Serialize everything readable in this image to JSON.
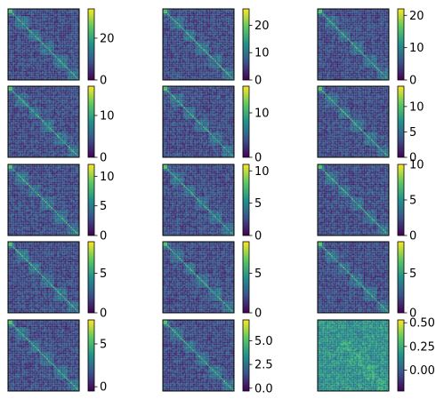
{
  "chart_data": {
    "type": "heatmap",
    "layout": {
      "rows": 5,
      "cols": 3
    },
    "colormap": "viridis",
    "colormap_stops": [
      "#440154",
      "#3b528b",
      "#21918c",
      "#5ec962",
      "#fde725"
    ],
    "axes_ticks_visible": false,
    "matrix_size": 48,
    "panels": [
      {
        "vmin": 0,
        "vmax": 34,
        "cbar_ticks": [
          0,
          20
        ],
        "cbar_tick_labels": [
          "0",
          "20"
        ]
      },
      {
        "vmin": 0,
        "vmax": 26,
        "cbar_ticks": [
          0,
          10,
          20
        ],
        "cbar_tick_labels": [
          "0",
          "10",
          "20"
        ]
      },
      {
        "vmin": 0,
        "vmax": 22,
        "cbar_ticks": [
          0,
          10,
          20
        ],
        "cbar_tick_labels": [
          "0",
          "10",
          "20"
        ]
      },
      {
        "vmin": 0,
        "vmax": 17,
        "cbar_ticks": [
          0,
          10
        ],
        "cbar_tick_labels": [
          "0",
          "10"
        ]
      },
      {
        "vmin": 0,
        "vmax": 16,
        "cbar_ticks": [
          0,
          10
        ],
        "cbar_tick_labels": [
          "0",
          "10"
        ]
      },
      {
        "vmin": 0,
        "vmax": 14,
        "cbar_ticks": [
          0,
          5,
          10
        ],
        "cbar_tick_labels": [
          "0",
          "5",
          "10"
        ]
      },
      {
        "vmin": 0,
        "vmax": 12,
        "cbar_ticks": [
          0,
          5,
          10
        ],
        "cbar_tick_labels": [
          "0",
          "5",
          "10"
        ]
      },
      {
        "vmin": 0,
        "vmax": 11,
        "cbar_ticks": [
          0,
          5,
          10
        ],
        "cbar_tick_labels": [
          "0",
          "5",
          "10"
        ]
      },
      {
        "vmin": 0,
        "vmax": 10,
        "cbar_ticks": [
          0,
          5,
          10
        ],
        "cbar_tick_labels": [
          "0",
          "5",
          "10"
        ]
      },
      {
        "vmin": 0,
        "vmax": 9,
        "cbar_ticks": [
          0,
          5
        ],
        "cbar_tick_labels": [
          "0",
          "5"
        ]
      },
      {
        "vmin": 0,
        "vmax": 9,
        "cbar_ticks": [
          0,
          5
        ],
        "cbar_tick_labels": [
          "0",
          "5"
        ]
      },
      {
        "vmin": 0,
        "vmax": 9,
        "cbar_ticks": [
          0,
          5
        ],
        "cbar_tick_labels": [
          "0",
          "5"
        ]
      },
      {
        "vmin": -0.5,
        "vmax": 7.8,
        "cbar_ticks": [
          0,
          5
        ],
        "cbar_tick_labels": [
          "0",
          "5"
        ]
      },
      {
        "vmin": -0.3,
        "vmax": 7.2,
        "cbar_ticks": [
          0,
          2.5,
          5
        ],
        "cbar_tick_labels": [
          "0.0",
          "2.5",
          "5.0"
        ]
      },
      {
        "vmin": -0.22,
        "vmax": 0.53,
        "cbar_ticks": [
          0,
          0.25,
          0.5
        ],
        "cbar_tick_labels": [
          "0.00",
          "0.25",
          "0.50"
        ]
      }
    ]
  }
}
